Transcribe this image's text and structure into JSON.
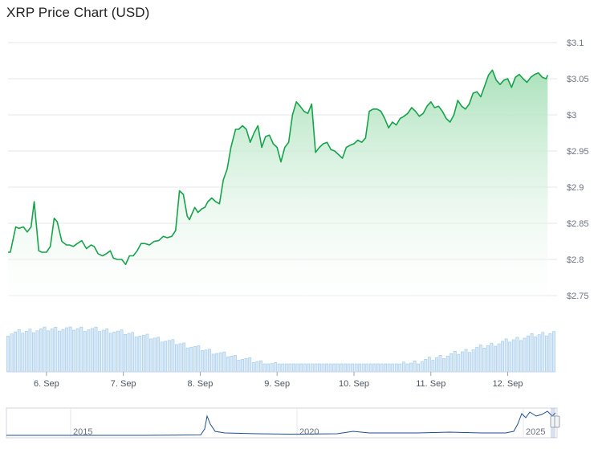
{
  "title": "XRP Price Chart (USD)",
  "chart_data": {
    "type": "area",
    "title": "XRP Price Chart (USD)",
    "xlabel": "",
    "ylabel": "",
    "ylim": [
      2.74,
      3.11
    ],
    "y_ticks": [
      "$2.75",
      "$2.8",
      "$2.85",
      "$2.9",
      "$2.95",
      "$3",
      "$3.05",
      "$3.1"
    ],
    "y_tick_values": [
      2.75,
      2.8,
      2.85,
      2.9,
      2.95,
      3.0,
      3.05,
      3.1
    ],
    "x_ticks": [
      "6. Sep",
      "7. Sep",
      "8. Sep",
      "9. Sep",
      "10. Sep",
      "11. Sep",
      "12. Sep"
    ],
    "x_tick_positions": [
      0.5,
      1.5,
      2.5,
      3.5,
      4.5,
      5.5,
      6.5
    ],
    "x_range": [
      0.0,
      7.1
    ],
    "grid": "horizontal",
    "colors": {
      "line": "#16a34a",
      "area_top": "#a7e0b8",
      "volume": "#9ec7ea",
      "navigator_line": "#1d4f91"
    },
    "series": [
      {
        "x": [
          0.0,
          0.03,
          0.1,
          0.14,
          0.2,
          0.25,
          0.3,
          0.34,
          0.4,
          0.44,
          0.5,
          0.55,
          0.6,
          0.64,
          0.7,
          0.76,
          0.8,
          0.85,
          0.9,
          0.96,
          1.02,
          1.08,
          1.12,
          1.17,
          1.23,
          1.28,
          1.33,
          1.37,
          1.42,
          1.48,
          1.53,
          1.58,
          1.63,
          1.68,
          1.73,
          1.78,
          1.84,
          1.9,
          1.96,
          2.02,
          2.07,
          2.13,
          2.18,
          2.23,
          2.28,
          2.33,
          2.36,
          2.4,
          2.43,
          2.47,
          2.52,
          2.56,
          2.6,
          2.65,
          2.7,
          2.75,
          2.8,
          2.85,
          2.9,
          2.96,
          3.0,
          3.05,
          3.1,
          3.15,
          3.2,
          3.25,
          3.3,
          3.35,
          3.4,
          3.45,
          3.5,
          3.55,
          3.6,
          3.65,
          3.7,
          3.75,
          3.8,
          3.85,
          3.9,
          3.95,
          4.0,
          4.05,
          4.1,
          4.15,
          4.2,
          4.25,
          4.3,
          4.35,
          4.4,
          4.45,
          4.5,
          4.55,
          4.6,
          4.65,
          4.7,
          4.75,
          4.8,
          4.85,
          4.9,
          4.95,
          5.0,
          5.05,
          5.1,
          5.15,
          5.2,
          5.25,
          5.3,
          5.35,
          5.4,
          5.45,
          5.5,
          5.55,
          5.6,
          5.65,
          5.7,
          5.75,
          5.8,
          5.85,
          5.9,
          5.95,
          6.0,
          6.05,
          6.1,
          6.15,
          6.2,
          6.25,
          6.3,
          6.35,
          6.4,
          6.45,
          6.5,
          6.55,
          6.6,
          6.65,
          6.7,
          6.75,
          6.8,
          6.85,
          6.9,
          6.95,
          7.0,
          7.02
        ],
        "y": [
          2.81,
          2.81,
          2.845,
          2.843,
          2.845,
          2.838,
          2.845,
          2.88,
          2.812,
          2.81,
          2.81,
          2.818,
          2.857,
          2.852,
          2.825,
          2.82,
          2.82,
          2.818,
          2.822,
          2.826,
          2.815,
          2.82,
          2.818,
          2.808,
          2.805,
          2.808,
          2.812,
          2.802,
          2.8,
          2.8,
          2.793,
          2.805,
          2.805,
          2.812,
          2.822,
          2.822,
          2.82,
          2.825,
          2.826,
          2.832,
          2.83,
          2.832,
          2.84,
          2.895,
          2.89,
          2.86,
          2.855,
          2.865,
          2.872,
          2.865,
          2.87,
          2.872,
          2.88,
          2.885,
          2.88,
          2.877,
          2.91,
          2.925,
          2.955,
          2.98,
          2.98,
          2.985,
          2.98,
          2.962,
          2.975,
          2.985,
          2.955,
          2.97,
          2.972,
          2.96,
          2.955,
          2.935,
          2.955,
          2.962,
          3.0,
          3.018,
          3.012,
          3.005,
          3.002,
          3.015,
          2.948,
          2.955,
          2.96,
          2.962,
          2.952,
          2.95,
          2.945,
          2.94,
          2.955,
          2.958,
          2.96,
          2.965,
          2.962,
          2.968,
          3.005,
          3.008,
          3.008,
          3.005,
          2.995,
          2.982,
          2.99,
          2.986,
          2.995,
          2.998,
          3.002,
          3.01,
          3.005,
          2.998,
          3.002,
          3.012,
          3.018,
          3.01,
          3.012,
          3.005,
          2.995,
          2.99,
          3.0,
          3.02,
          3.012,
          3.008,
          3.015,
          3.03,
          3.032,
          3.025,
          3.04,
          3.055,
          3.062,
          3.048,
          3.042,
          3.048,
          3.05,
          3.038,
          3.052,
          3.056,
          3.05,
          3.045,
          3.052,
          3.056,
          3.058,
          3.052,
          3.05,
          3.055
        ]
      }
    ],
    "navigator": {
      "x_ticks": [
        "2015",
        "2020",
        "2025"
      ]
    }
  }
}
